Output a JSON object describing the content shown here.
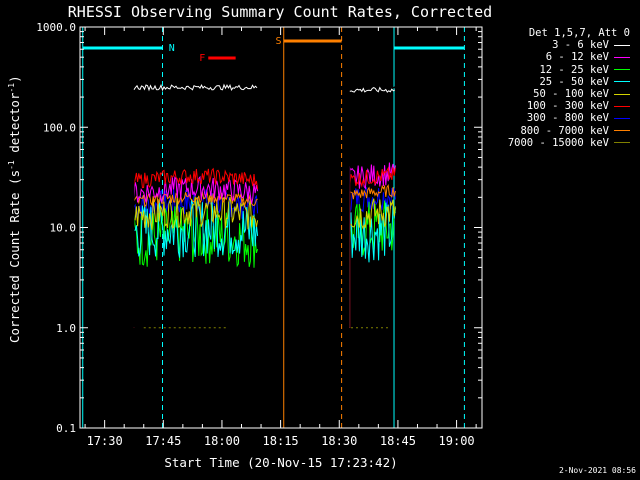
{
  "chart_data": {
    "type": "line",
    "title": "RHESSI Observing Summary Count Rates, Corrected",
    "ylabel_main": "Corrected Count Rate (s",
    "ylabel_sup": "-1",
    "ylabel_mid": " detector",
    "ylabel_end": ")",
    "xlabel": "Start Time (20-Nov-15 17:23:42)",
    "yscale": "log",
    "ylim": [
      0.1,
      1000.0
    ],
    "y_ticks": [
      "0.1",
      "1.0",
      "10.0",
      "100.0",
      "1000.0"
    ],
    "xlim_minutes": [
      1043.7,
      1146.5
    ],
    "x_ticks": [
      {
        "label": "17:30",
        "min": 1050
      },
      {
        "label": "17:45",
        "min": 1065
      },
      {
        "label": "18:00",
        "min": 1080
      },
      {
        "label": "18:15",
        "min": 1095
      },
      {
        "label": "18:30",
        "min": 1110
      },
      {
        "label": "18:45",
        "min": 1125
      },
      {
        "label": "19:00",
        "min": 1140
      }
    ],
    "legend_title": "Det 1,5,7, Att 0",
    "series": [
      {
        "name": "3 - 6 keV",
        "color": "#000000",
        "segments": [
          {
            "start": 1057.5,
            "end": 1089.2,
            "level": 250
          },
          {
            "start": 1112.7,
            "end": 1124.5,
            "level": 235
          }
        ]
      },
      {
        "name": "6 - 12 keV",
        "color": "#ff00ff",
        "segments": [
          {
            "start": 1057.5,
            "end": 1089.2,
            "level": 22
          },
          {
            "start": 1112.7,
            "end": 1124.5,
            "level": 31
          }
        ]
      },
      {
        "name": "12 - 25 keV",
        "color": "#00ff00",
        "segments": [
          {
            "start": 1057.5,
            "end": 1089.2,
            "level": 7.5
          },
          {
            "start": 1112.7,
            "end": 1124.5,
            "level": 9
          }
        ]
      },
      {
        "name": "25 - 50 keV",
        "color": "#00ffff",
        "segments": [
          {
            "start": 1057.5,
            "end": 1089.2,
            "level": 9
          },
          {
            "start": 1112.7,
            "end": 1124.5,
            "level": 8.5
          }
        ]
      },
      {
        "name": "50 - 100 keV",
        "color": "#d4d400",
        "segments": [
          {
            "start": 1057.5,
            "end": 1089.2,
            "level": 13
          },
          {
            "start": 1112.7,
            "end": 1124.5,
            "level": 13
          }
        ]
      },
      {
        "name": "100 - 300 keV",
        "color": "#ff0000",
        "segments": [
          {
            "start": 1057.5,
            "end": 1089.2,
            "level": 29
          },
          {
            "start": 1112.7,
            "end": 1124.5,
            "level": 30
          }
        ]
      },
      {
        "name": "300 - 800 keV",
        "color": "#0000ff",
        "segments": [
          {
            "start": 1057.5,
            "end": 1089.2,
            "level": 16
          },
          {
            "start": 1112.7,
            "end": 1124.5,
            "level": 19
          }
        ]
      },
      {
        "name": "800 - 7000 keV",
        "color": "#ff8000",
        "segments": [
          {
            "start": 1057.5,
            "end": 1089.2,
            "level": 18
          },
          {
            "start": 1112.7,
            "end": 1124.5,
            "level": 21
          }
        ]
      },
      {
        "name": "7000 - 15000 keV",
        "color": "#808000",
        "segments": [
          {
            "start": 1060.0,
            "end": 1083.0,
            "level": 1.0
          },
          {
            "start": 1113.0,
            "end": 1124.5,
            "level": 1.0
          }
        ]
      }
    ],
    "annotations": {
      "night_label": "N",
      "flare_label": "F",
      "saa_label": "S",
      "night_color": "#00ffff",
      "flare_color": "#ff0000",
      "saa_color": "#ff8000"
    }
  },
  "footer": "2-Nov-2021 08:56"
}
